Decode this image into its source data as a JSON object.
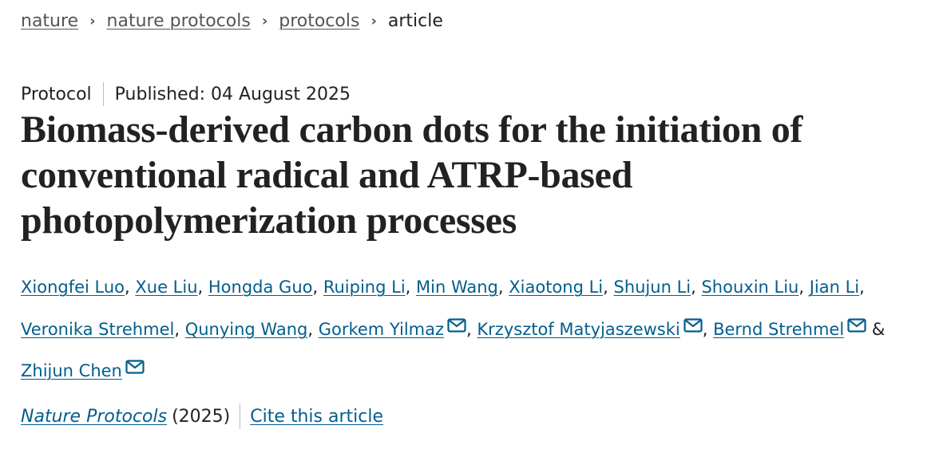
{
  "breadcrumb": [
    "nature",
    "nature protocols",
    "protocols",
    "article"
  ],
  "article_type": "Protocol",
  "published": "Published: 04 August 2025",
  "title": "Biomass-derived carbon dots for the initiation of conventional radical and ATRP-based photopolymerization processes",
  "authors": [
    {
      "name": "Xiongfei Luo",
      "mail": false
    },
    {
      "name": "Xue Liu",
      "mail": false
    },
    {
      "name": "Hongda Guo",
      "mail": false
    },
    {
      "name": "Ruiping Li",
      "mail": false
    },
    {
      "name": "Min Wang",
      "mail": false
    },
    {
      "name": "Xiaotong Li",
      "mail": false
    },
    {
      "name": "Shujun Li",
      "mail": false
    },
    {
      "name": "Shouxin Liu",
      "mail": false
    },
    {
      "name": "Jian Li",
      "mail": false
    },
    {
      "name": "Veronika Strehmel",
      "mail": false
    },
    {
      "name": "Qunying Wang",
      "mail": false
    },
    {
      "name": "Gorkem Yilmaz",
      "mail": true
    },
    {
      "name": "Krzysztof Matyjaszewski",
      "mail": true
    },
    {
      "name": "Bernd Strehmel",
      "mail": true
    },
    {
      "name": "Zhijun Chen",
      "mail": true
    }
  ],
  "journal": "Nature Protocols",
  "year": "(2025)",
  "cite_label": "Cite this article",
  "colors": {
    "link": "#025e8d",
    "text": "#222222"
  }
}
